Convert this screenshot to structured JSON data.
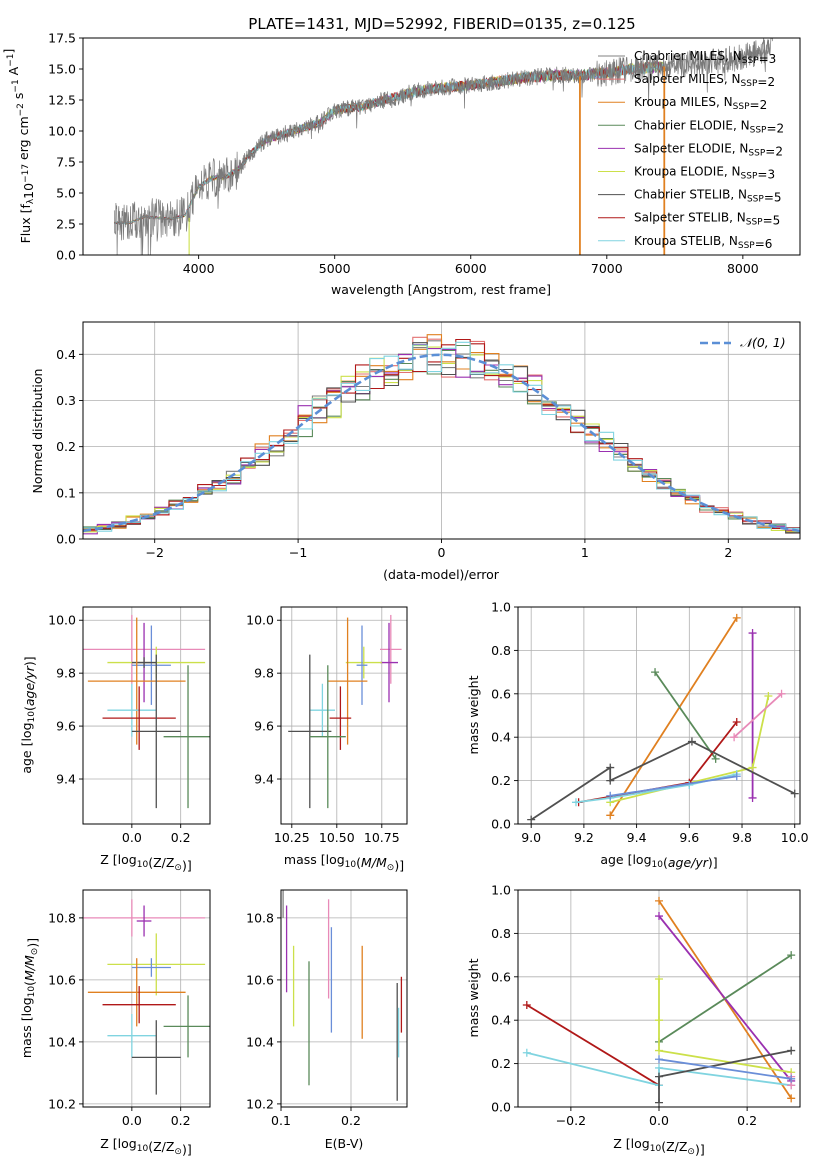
{
  "title": "PLATE=1431, MJD=52992, FIBERID=0135, z=0.125",
  "colors": {
    "chabrier_miles": "#808080",
    "salpeter_miles": "#e37272",
    "kroupa_miles": "#e08020",
    "chabrier_elodie": "#5a8a5a",
    "salpeter_elodie": "#9a30b0",
    "kroupa_elodie": "#cce04a",
    "chabrier_stelib": "#505050",
    "salpeter_stelib": "#b01818",
    "kroupa_stelib": "#80d4e0",
    "normal": "#5b8fd6",
    "pink": "#e88ab8",
    "blue": "#6a8ed8"
  },
  "chart_data": [
    {
      "id": "spectrum",
      "type": "line",
      "xlabel": "wavelength [Angstrom, rest frame]",
      "ylabel": "Flux [f",
      "ylabel_parts": [
        "Flux [f",
        "λ",
        "10",
        "−17",
        " erg cm",
        "−2",
        " s",
        "−1",
        " A",
        "−1",
        "]"
      ],
      "xlim": [
        3150,
        8420
      ],
      "ylim": [
        0,
        17.5
      ],
      "xticks": [
        4000,
        5000,
        6000,
        7000,
        8000
      ],
      "yticks": [
        0.0,
        2.5,
        5.0,
        7.5,
        10.0,
        12.5,
        15.0,
        17.5
      ],
      "ytick_labels": [
        "0.0",
        "2.5",
        "5.0",
        "7.5",
        "10.0",
        "12.5",
        "15.0",
        "17.5"
      ],
      "legend_placement": "right",
      "continuum": [
        [
          3380,
          2.6
        ],
        [
          3500,
          2.6
        ],
        [
          3600,
          3.1
        ],
        [
          3700,
          3.0
        ],
        [
          3800,
          2.9
        ],
        [
          3900,
          3.2
        ],
        [
          4000,
          5.5
        ],
        [
          4100,
          6.2
        ],
        [
          4200,
          6.3
        ],
        [
          4300,
          7.0
        ],
        [
          4400,
          8.4
        ],
        [
          4500,
          9.3
        ],
        [
          4700,
          10.0
        ],
        [
          4900,
          10.7
        ],
        [
          5000,
          11.7
        ],
        [
          5200,
          12.0
        ],
        [
          5400,
          12.6
        ],
        [
          5600,
          13.2
        ],
        [
          5800,
          13.5
        ],
        [
          6000,
          13.7
        ],
        [
          6200,
          14.0
        ],
        [
          6400,
          14.3
        ],
        [
          6600,
          14.5
        ],
        [
          6800,
          14.5
        ],
        [
          7000,
          14.7
        ],
        [
          7200,
          15.0
        ],
        [
          7400,
          15.2
        ],
        [
          7600,
          15.4
        ],
        [
          7800,
          15.6
        ],
        [
          8000,
          16.0
        ],
        [
          8200,
          16.6
        ]
      ],
      "series": [
        {
          "name": "Chabrier MILES, N",
          "sub": "SSP",
          "n": "=3",
          "color_key": "chabrier_miles"
        },
        {
          "name": "Salpeter MILES, N",
          "sub": "SSP",
          "n": "=2",
          "color_key": "salpeter_miles"
        },
        {
          "name": "Kroupa MILES, N",
          "sub": "SSP",
          "n": "=2",
          "color_key": "kroupa_miles"
        },
        {
          "name": "Chabrier ELODIE, N",
          "sub": "SSP",
          "n": "=2",
          "color_key": "chabrier_elodie"
        },
        {
          "name": "Salpeter ELODIE, N",
          "sub": "SSP",
          "n": "=2",
          "color_key": "salpeter_elodie"
        },
        {
          "name": "Kroupa ELODIE, N",
          "sub": "SSP",
          "n": "=3",
          "color_key": "kroupa_elodie"
        },
        {
          "name": "Chabrier STELIB, N",
          "sub": "SSP",
          "n": "=5",
          "color_key": "chabrier_stelib"
        },
        {
          "name": "Salpeter STELIB, N",
          "sub": "SSP",
          "n": "=5",
          "color_key": "salpeter_stelib"
        },
        {
          "name": "Kroupa STELIB, N",
          "sub": "SSP",
          "n": "=6",
          "color_key": "kroupa_stelib"
        }
      ]
    },
    {
      "id": "residuals",
      "type": "line",
      "xlabel": "(data-model)/error",
      "ylabel": "Normed distribution",
      "xlim": [
        -2.5,
        2.5
      ],
      "ylim": [
        0,
        0.47
      ],
      "xticks": [
        -2,
        -1,
        0,
        1,
        2
      ],
      "xtick_labels": [
        "−2",
        "−1",
        "0",
        "1",
        "2"
      ],
      "yticks": [
        0.0,
        0.1,
        0.2,
        0.3,
        0.4
      ],
      "ytick_labels": [
        "0.0",
        "0.1",
        "0.2",
        "0.3",
        "0.4"
      ],
      "grid": true,
      "legend": "𝒩(0, 1)",
      "legend_placement": "top-right",
      "hist_colors": [
        "chabrier_miles",
        "salpeter_miles",
        "kroupa_miles",
        "chabrier_elodie",
        "salpeter_elodie",
        "kroupa_elodie",
        "chabrier_stelib",
        "salpeter_stelib",
        "kroupa_stelib"
      ]
    },
    {
      "id": "age_vs_Z",
      "type": "scatter",
      "xlabel": "Z [log10(Z/Z⊙)]",
      "ylabel": "age  [log10(age/yr)]",
      "xlim": [
        -0.2,
        0.32
      ],
      "ylim": [
        9.23,
        10.05
      ],
      "xticks": [
        0.0,
        0.2
      ],
      "xtick_labels": [
        "0.0",
        "0.2"
      ],
      "yticks": [
        9.4,
        9.6,
        9.8,
        10.0
      ],
      "ytick_labels": [
        "9.4",
        "9.6",
        "9.8",
        "10.0"
      ],
      "grid": true,
      "points": [
        {
          "x": 0.0,
          "y": 9.89,
          "xerr": 0.3,
          "yerr": 0.13,
          "c": "pink"
        },
        {
          "x": 0.05,
          "y": 9.84,
          "xerr": 0.03,
          "yerr": 0.15,
          "c": "salpeter_elodie"
        },
        {
          "x": 0.1,
          "y": 9.84,
          "xerr": 0.2,
          "yerr": 0.06,
          "c": "kroupa_elodie"
        },
        {
          "x": 0.08,
          "y": 9.83,
          "xerr": 0.08,
          "yerr": 0.15,
          "c": "blue"
        },
        {
          "x": 0.05,
          "y": 9.84,
          "xerr": 0.05,
          "yerr": 0.02,
          "c": "chabrier_stelib"
        },
        {
          "x": 0.02,
          "y": 9.77,
          "xerr": 0.2,
          "yerr": 0.24,
          "c": "kroupa_miles"
        },
        {
          "x": 0.0,
          "y": 9.66,
          "xerr": 0.1,
          "yerr": 0.1,
          "c": "kroupa_stelib"
        },
        {
          "x": 0.03,
          "y": 9.63,
          "xerr": 0.15,
          "yerr": 0.12,
          "c": "salpeter_stelib"
        },
        {
          "x": 0.1,
          "y": 9.58,
          "xerr": 0.1,
          "yerr": 0.29,
          "c": "chabrier_stelib"
        },
        {
          "x": 0.23,
          "y": 9.56,
          "xerr": 0.1,
          "yerr": 0.27,
          "c": "chabrier_elodie"
        }
      ]
    },
    {
      "id": "age_vs_mass",
      "type": "scatter",
      "xlabel": "mass [log10(M/M⊙)]",
      "xlim": [
        10.19,
        10.89
      ],
      "ylim": [
        9.23,
        10.05
      ],
      "xticks": [
        10.25,
        10.5,
        10.75
      ],
      "xtick_labels": [
        "10.25",
        "10.50",
        "10.75"
      ],
      "yticks": [
        9.4,
        9.6,
        9.8,
        10.0
      ],
      "ytick_labels": [
        "9.4",
        "9.6",
        "9.8",
        "10.0"
      ],
      "grid": true,
      "points": [
        {
          "x": 10.8,
          "y": 9.89,
          "xerr": 0.06,
          "yerr": 0.13,
          "c": "pink"
        },
        {
          "x": 10.79,
          "y": 9.84,
          "xerr": 0.05,
          "yerr": 0.15,
          "c": "salpeter_elodie"
        },
        {
          "x": 10.65,
          "y": 9.84,
          "xerr": 0.1,
          "yerr": 0.06,
          "c": "kroupa_elodie"
        },
        {
          "x": 10.64,
          "y": 9.83,
          "xerr": 0.03,
          "yerr": 0.15,
          "c": "blue"
        },
        {
          "x": 10.56,
          "y": 9.77,
          "xerr": 0.11,
          "yerr": 0.24,
          "c": "kroupa_miles"
        },
        {
          "x": 10.42,
          "y": 9.66,
          "xerr": 0.07,
          "yerr": 0.1,
          "c": "kroupa_stelib"
        },
        {
          "x": 10.52,
          "y": 9.63,
          "xerr": 0.06,
          "yerr": 0.12,
          "c": "salpeter_stelib"
        },
        {
          "x": 10.35,
          "y": 9.58,
          "xerr": 0.12,
          "yerr": 0.29,
          "c": "chabrier_stelib"
        },
        {
          "x": 10.45,
          "y": 9.56,
          "xerr": 0.1,
          "yerr": 0.27,
          "c": "chabrier_elodie"
        }
      ]
    },
    {
      "id": "weight_vs_age",
      "type": "line",
      "xlabel": "age  [log10(age/yr)]",
      "ylabel": "mass weight",
      "xlim": [
        8.95,
        10.02
      ],
      "ylim": [
        0,
        1
      ],
      "xticks": [
        9.0,
        9.2,
        9.4,
        9.6,
        9.8,
        10.0
      ],
      "xtick_labels": [
        "9.0",
        "9.2",
        "9.4",
        "9.6",
        "9.8",
        "10.0"
      ],
      "yticks": [
        0.0,
        0.2,
        0.4,
        0.6,
        0.8,
        1.0
      ],
      "ytick_labels": [
        "0.0",
        "0.2",
        "0.4",
        "0.6",
        "0.8",
        "1.0"
      ],
      "grid": true,
      "series": [
        {
          "c": "kroupa_miles",
          "x": [
            9.3,
            9.78
          ],
          "y": [
            0.04,
            0.95
          ]
        },
        {
          "c": "salpeter_elodie",
          "x": [
            9.84,
            9.84
          ],
          "y": [
            0.12,
            0.88
          ]
        },
        {
          "c": "chabrier_elodie",
          "x": [
            9.47,
            9.7
          ],
          "y": [
            0.7,
            0.3
          ]
        },
        {
          "c": "kroupa_elodie",
          "x": [
            9.3,
            9.84,
            9.9
          ],
          "y": [
            0.1,
            0.26,
            0.59
          ]
        },
        {
          "c": "pink",
          "x": [
            9.77,
            9.95
          ],
          "y": [
            0.4,
            0.6
          ]
        },
        {
          "c": "salpeter_stelib",
          "x": [
            9.18,
            9.6,
            9.78
          ],
          "y": [
            0.1,
            0.19,
            0.47
          ]
        },
        {
          "c": "chabrier_stelib",
          "x": [
            9.0,
            9.3,
            9.3,
            9.61,
            10.0
          ],
          "y": [
            0.02,
            0.26,
            0.2,
            0.38,
            0.14
          ]
        },
        {
          "c": "kroupa_stelib",
          "x": [
            9.17,
            9.3,
            9.6,
            9.78
          ],
          "y": [
            0.1,
            0.12,
            0.18,
            0.23
          ]
        },
        {
          "c": "blue",
          "x": [
            9.3,
            9.78
          ],
          "y": [
            0.13,
            0.22
          ]
        }
      ]
    },
    {
      "id": "mass_vs_Z",
      "type": "scatter",
      "xlabel": "Z [log10(Z/Z⊙)]",
      "ylabel": "mass [log10(M/M⊙)]",
      "xlim": [
        -0.2,
        0.32
      ],
      "ylim": [
        10.19,
        10.89
      ],
      "xticks": [
        0.0,
        0.2
      ],
      "xtick_labels": [
        "0.0",
        "0.2"
      ],
      "yticks": [
        10.2,
        10.4,
        10.6,
        10.8
      ],
      "ytick_labels": [
        "10.2",
        "10.4",
        "10.6",
        "10.8"
      ],
      "grid": true,
      "points": [
        {
          "x": 0.0,
          "y": 10.8,
          "xerr": 0.3,
          "yerr": 0.06,
          "c": "pink"
        },
        {
          "x": 0.05,
          "y": 10.79,
          "xerr": 0.03,
          "yerr": 0.05,
          "c": "salpeter_elodie"
        },
        {
          "x": 0.1,
          "y": 10.65,
          "xerr": 0.2,
          "yerr": 0.1,
          "c": "kroupa_elodie"
        },
        {
          "x": 0.08,
          "y": 10.64,
          "xerr": 0.08,
          "yerr": 0.03,
          "c": "blue"
        },
        {
          "x": 0.02,
          "y": 10.56,
          "xerr": 0.2,
          "yerr": 0.11,
          "c": "kroupa_miles"
        },
        {
          "x": 0.03,
          "y": 10.52,
          "xerr": 0.15,
          "yerr": 0.06,
          "c": "salpeter_stelib"
        },
        {
          "x": 0.23,
          "y": 10.45,
          "xerr": 0.1,
          "yerr": 0.1,
          "c": "chabrier_elodie"
        },
        {
          "x": 0.0,
          "y": 10.42,
          "xerr": 0.1,
          "yerr": 0.07,
          "c": "kroupa_stelib"
        },
        {
          "x": 0.1,
          "y": 10.35,
          "xerr": 0.1,
          "yerr": 0.12,
          "c": "chabrier_stelib"
        }
      ]
    },
    {
      "id": "mass_vs_ebv",
      "type": "scatter",
      "xlabel": "E(B-V)",
      "xlim": [
        0.1,
        0.28
      ],
      "ylim": [
        10.19,
        10.89
      ],
      "xticks": [
        0.1,
        0.2
      ],
      "xtick_labels": [
        "0.1",
        "0.2"
      ],
      "yticks": [
        10.2,
        10.4,
        10.6,
        10.8
      ],
      "ytick_labels": [
        "10.2",
        "10.4",
        "10.6",
        "10.8"
      ],
      "grid": true,
      "points": [
        {
          "x": 0.103,
          "y": 10.85,
          "xerr": 0,
          "yerr": 0.05,
          "c": "chabrier_miles"
        },
        {
          "x": 0.108,
          "y": 10.7,
          "xerr": 0,
          "yerr": 0.14,
          "c": "salpeter_elodie"
        },
        {
          "x": 0.118,
          "y": 10.58,
          "xerr": 0,
          "yerr": 0.13,
          "c": "kroupa_elodie"
        },
        {
          "x": 0.14,
          "y": 10.46,
          "xerr": 0,
          "yerr": 0.2,
          "c": "chabrier_elodie"
        },
        {
          "x": 0.168,
          "y": 10.7,
          "xerr": 0,
          "yerr": 0.16,
          "c": "pink"
        },
        {
          "x": 0.172,
          "y": 10.6,
          "xerr": 0,
          "yerr": 0.17,
          "c": "blue"
        },
        {
          "x": 0.216,
          "y": 10.56,
          "xerr": 0,
          "yerr": 0.15,
          "c": "kroupa_miles"
        },
        {
          "x": 0.266,
          "y": 10.4,
          "xerr": 0,
          "yerr": 0.19,
          "c": "chabrier_stelib"
        },
        {
          "x": 0.268,
          "y": 10.43,
          "xerr": 0,
          "yerr": 0.08,
          "c": "kroupa_stelib"
        },
        {
          "x": 0.272,
          "y": 10.52,
          "xerr": 0,
          "yerr": 0.09,
          "c": "salpeter_stelib"
        }
      ]
    },
    {
      "id": "weight_vs_Z",
      "type": "line",
      "xlabel": "Z [log10(Z/Z⊙)]",
      "ylabel": "mass weight",
      "xlim": [
        -0.32,
        0.32
      ],
      "ylim": [
        0,
        1
      ],
      "xticks": [
        -0.2,
        0.0,
        0.2
      ],
      "xtick_labels": [
        "−0.2",
        "0.0",
        "0.2"
      ],
      "yticks": [
        0.0,
        0.2,
        0.4,
        0.6,
        0.8,
        1.0
      ],
      "ytick_labels": [
        "0.0",
        "0.2",
        "0.4",
        "0.6",
        "0.8",
        "1.0"
      ],
      "grid": true,
      "series": [
        {
          "c": "kroupa_miles",
          "x": [
            0.0,
            0.3
          ],
          "y": [
            0.95,
            0.04
          ]
        },
        {
          "c": "salpeter_elodie",
          "x": [
            0.0,
            0.3
          ],
          "y": [
            0.88,
            0.12
          ]
        },
        {
          "c": "chabrier_elodie",
          "x": [
            0.0,
            0.3
          ],
          "y": [
            0.3,
            0.7
          ]
        },
        {
          "c": "kroupa_elodie",
          "x": [
            0.0,
            0.0,
            0.0,
            0.3
          ],
          "y": [
            0.59,
            0.4,
            0.26,
            0.16
          ]
        },
        {
          "c": "salpeter_stelib",
          "x": [
            -0.3,
            0.0
          ],
          "y": [
            0.47,
            0.1
          ]
        },
        {
          "c": "kroupa_stelib",
          "x": [
            -0.3,
            0.0,
            0.0,
            0.3
          ],
          "y": [
            0.25,
            0.1,
            0.18,
            0.1
          ]
        },
        {
          "c": "chabrier_stelib",
          "x": [
            0.0,
            0.0,
            0.3
          ],
          "y": [
            0.02,
            0.14,
            0.26
          ]
        },
        {
          "c": "pink",
          "x": [
            0.3,
            0.3
          ],
          "y": [
            0.1,
            0.14
          ]
        },
        {
          "c": "blue",
          "x": [
            0.0,
            0.3
          ],
          "y": [
            0.22,
            0.13
          ]
        }
      ]
    }
  ]
}
